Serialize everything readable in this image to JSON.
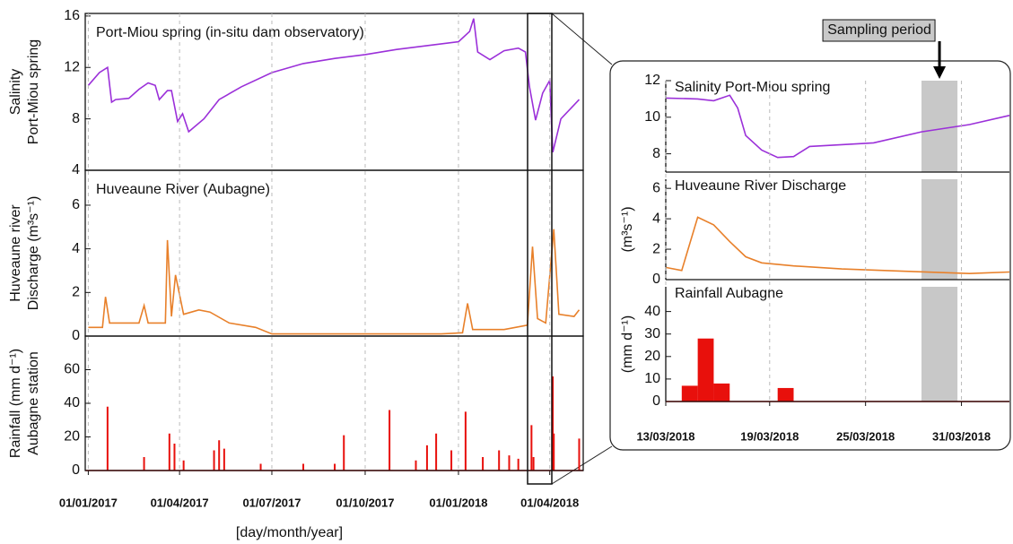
{
  "chart_data": [
    {
      "type": "line",
      "annotation": "Port-Miou spring (in-situ dam observatory)",
      "y_label": [
        "Salinity",
        "Port-Miou spring"
      ],
      "color": "#9b30d9",
      "x": [
        "2017-01-01",
        "2017-01-12",
        "2017-01-20",
        "2017-01-24",
        "2017-01-28",
        "2017-02-10",
        "2017-02-20",
        "2017-03-01",
        "2017-03-08",
        "2017-03-12",
        "2017-03-20",
        "2017-03-24",
        "2017-03-30",
        "2017-04-04",
        "2017-04-10",
        "2017-04-25",
        "2017-05-10",
        "2017-06-01",
        "2017-07-01",
        "2017-08-01",
        "2017-09-01",
        "2017-10-01",
        "2017-11-01",
        "2017-12-01",
        "2018-01-01",
        "2018-01-12",
        "2018-01-16",
        "2018-01-20",
        "2018-02-01",
        "2018-02-15",
        "2018-03-01",
        "2018-03-08",
        "2018-03-12",
        "2018-03-18",
        "2018-03-25",
        "2018-04-01",
        "2018-04-04",
        "2018-04-12",
        "2018-04-30"
      ],
      "values": [
        10.6,
        11.6,
        12.0,
        9.3,
        9.5,
        9.6,
        10.3,
        10.8,
        10.6,
        9.5,
        10.2,
        10.2,
        7.8,
        8.4,
        7.0,
        8.0,
        9.5,
        10.5,
        11.6,
        12.3,
        12.7,
        13.0,
        13.4,
        13.7,
        14.0,
        14.8,
        15.8,
        13.2,
        12.6,
        13.3,
        13.5,
        13.2,
        10.5,
        7.9,
        10.0,
        11.0,
        5.4,
        8.0,
        9.5
      ],
      "ylim": [
        4,
        16.2
      ],
      "yticks": [
        4,
        8,
        12,
        16
      ],
      "xlim": [
        "2016-12-29",
        "2018-05-04"
      ],
      "grid": true
    },
    {
      "type": "line",
      "annotation": "Huveaune River (Aubagne)",
      "y_label": [
        "Huveaune river",
        "Discharge (m³s⁻¹)"
      ],
      "color": "#e8802a",
      "x": [
        "2017-01-01",
        "2017-01-15",
        "2017-01-18",
        "2017-01-22",
        "2017-02-20",
        "2017-02-25",
        "2017-03-01",
        "2017-03-18",
        "2017-03-20",
        "2017-03-24",
        "2017-03-28",
        "2017-04-05",
        "2017-04-20",
        "2017-05-01",
        "2017-05-20",
        "2017-06-15",
        "2017-07-01",
        "2017-09-01",
        "2017-11-01",
        "2017-12-15",
        "2018-01-05",
        "2018-01-10",
        "2018-01-15",
        "2018-02-15",
        "2018-03-10",
        "2018-03-15",
        "2018-03-20",
        "2018-03-28",
        "2018-04-05",
        "2018-04-10",
        "2018-04-25",
        "2018-04-30"
      ],
      "values": [
        0.4,
        0.4,
        1.8,
        0.6,
        0.6,
        1.4,
        0.6,
        0.6,
        4.4,
        0.9,
        2.8,
        1.0,
        1.2,
        1.1,
        0.6,
        0.4,
        0.1,
        0.1,
        0.1,
        0.1,
        0.15,
        1.5,
        0.3,
        0.3,
        0.5,
        4.1,
        0.8,
        0.6,
        4.9,
        1.0,
        0.9,
        1.2
      ],
      "ylim": [
        0,
        7.6
      ],
      "yticks": [
        0,
        2,
        4,
        6
      ],
      "xlim": [
        "2016-12-29",
        "2018-05-04"
      ],
      "grid": true
    },
    {
      "type": "bar",
      "y_label": [
        "Rainfall (mm d⁻¹)",
        "Aubagne station"
      ],
      "color": "#e8100c",
      "x": [
        "2017-01-20",
        "2017-02-25",
        "2017-03-22",
        "2017-03-27",
        "2017-04-05",
        "2017-05-05",
        "2017-05-10",
        "2017-05-15",
        "2017-06-20",
        "2017-08-01",
        "2017-09-01",
        "2017-09-10",
        "2017-10-25",
        "2017-11-20",
        "2017-12-01",
        "2017-12-10",
        "2017-12-25",
        "2018-01-08",
        "2018-01-25",
        "2018-02-10",
        "2018-02-20",
        "2018-03-01",
        "2018-03-14",
        "2018-03-16",
        "2018-04-04",
        "2018-04-05",
        "2018-04-30"
      ],
      "values": [
        38,
        8,
        22,
        16,
        6,
        12,
        18,
        13,
        4,
        4,
        4,
        21,
        36,
        6,
        15,
        22,
        12,
        35,
        8,
        12,
        9,
        7,
        27,
        8,
        56,
        22,
        19
      ],
      "ylim": [
        0,
        80
      ],
      "yticks": [
        0,
        20,
        40,
        60
      ],
      "xlim": [
        "2016-12-29",
        "2018-05-04"
      ],
      "grid": true,
      "xticks": [
        {
          "value": "2017-01-01",
          "label": "01/01/2017"
        },
        {
          "value": "2017-04-01",
          "label": "01/04/2017"
        },
        {
          "value": "2017-07-01",
          "label": "01/07/2017"
        },
        {
          "value": "2017-10-01",
          "label": "01/10/2017"
        },
        {
          "value": "2018-01-01",
          "label": "01/01/2018"
        },
        {
          "value": "2018-04-01",
          "label": "01/04/2018"
        }
      ],
      "x_label": "[day/month/year]"
    },
    {
      "type": "line",
      "annotation": "Salinity Port-Miou spring",
      "color": "#9b30d9",
      "x": [
        "2018-03-13",
        "2018-03-15",
        "2018-03-16",
        "2018-03-17",
        "2018-03-17T12:00",
        "2018-03-18",
        "2018-03-19",
        "2018-03-20",
        "2018-03-21",
        "2018-03-22",
        "2018-03-24",
        "2018-03-26",
        "2018-03-29",
        "2018-04-01",
        "2018-04-03T12:00"
      ],
      "values": [
        11.05,
        11.0,
        10.9,
        11.2,
        10.5,
        9.0,
        8.2,
        7.8,
        7.85,
        8.4,
        8.5,
        8.6,
        9.2,
        9.6,
        10.1
      ],
      "ylim": [
        7,
        12
      ],
      "yticks": [
        8,
        10,
        12
      ],
      "xlim": [
        "2018-03-13",
        "2018-04-03T12:00"
      ],
      "grid": true
    },
    {
      "type": "line",
      "annotation": "Huveaune River Discharge",
      "y_label": [
        "(m³s⁻¹)"
      ],
      "color": "#e8802a",
      "x": [
        "2018-03-13",
        "2018-03-14",
        "2018-03-15",
        "2018-03-16",
        "2018-03-17",
        "2018-03-18",
        "2018-03-19",
        "2018-03-21",
        "2018-03-24",
        "2018-03-28",
        "2018-04-01",
        "2018-04-03T12:00"
      ],
      "values": [
        0.8,
        0.6,
        4.1,
        3.6,
        2.5,
        1.5,
        1.1,
        0.9,
        0.7,
        0.55,
        0.4,
        0.5
      ],
      "ylim": [
        0,
        6.6
      ],
      "yticks": [
        0,
        2,
        4,
        6
      ],
      "xlim": [
        "2018-03-13",
        "2018-04-03T12:00"
      ],
      "grid": true
    },
    {
      "type": "bar",
      "annotation": "Rainfall Aubagne",
      "y_label": [
        "(mm d⁻¹)"
      ],
      "color": "#e8100c",
      "x": [
        "2018-03-14T12:00",
        "2018-03-15T12:00",
        "2018-03-16T12:00",
        "2018-03-20T12:00"
      ],
      "values": [
        7,
        28,
        8,
        6
      ],
      "ylim": [
        0,
        51
      ],
      "yticks": [
        0,
        10,
        20,
        30,
        40
      ],
      "xlim": [
        "2018-03-13",
        "2018-04-03T12:00"
      ],
      "grid": true,
      "xticks": [
        {
          "value": "2018-03-13",
          "label": "13/03/2018"
        },
        {
          "value": "2018-03-19T12:00",
          "label": "19/03/2018"
        },
        {
          "value": "2018-03-25T12:00",
          "label": "25/03/2018"
        },
        {
          "value": "2018-03-31T12:00",
          "label": "31/03/2018"
        }
      ]
    }
  ],
  "sampling_period": {
    "label": "Sampling period",
    "start": "2018-03-29",
    "end": "2018-03-31T06:00"
  }
}
